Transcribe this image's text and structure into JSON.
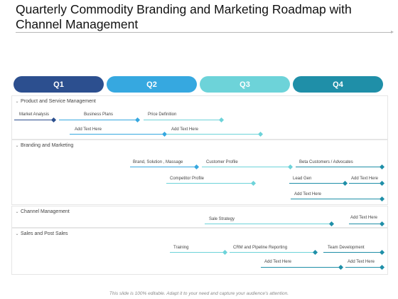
{
  "title": "Quarterly Commodity Branding and Marketing Roadmap with Channel Management",
  "quarters": [
    {
      "label": "Q1",
      "color": "#2c4f8f"
    },
    {
      "label": "Q2",
      "color": "#36a8e0"
    },
    {
      "label": "Q3",
      "color": "#6dd3d9"
    },
    {
      "label": "Q4",
      "color": "#1f8fa8"
    }
  ],
  "sections": {
    "product": "Product and Service Management",
    "branding": "Branding and Marketing",
    "channel": "Channel Management",
    "sales": "Sales and Post Sales"
  },
  "tasks": {
    "market_analysis": "Market Analysis",
    "business_plans": "Business Plans",
    "price_definition": "Price Definition",
    "add_text_1": "Add Text Here",
    "add_text_2": "Add Text Here",
    "brand_solution": "Brand, Solution , Massage",
    "customer_profile": "Customer Profile",
    "beta_customers": "Beta Customers / Advocates",
    "competitor_profile": "Competitor Profile",
    "lead_gen": "Lead Gen",
    "add_text_3": "Add Text Here",
    "add_text_4": "Add Text Here",
    "sale_strategy": "Sale Strategy",
    "add_text_5": "Add Text Here",
    "training": "Training",
    "crm_pipeline": "CRM and Pipeline Reporting",
    "team_development": "Team Development",
    "add_text_6": "Add Text Here",
    "add_text_7": "Add Text Here"
  },
  "colors": {
    "dark_blue": "#2c4f8f",
    "blue": "#36a8e0",
    "light_teal": "#6dd3d9",
    "teal": "#1f8fa8"
  },
  "footer": "This slide is 100% editable. Adapt it to your need and capture your audience's attention."
}
